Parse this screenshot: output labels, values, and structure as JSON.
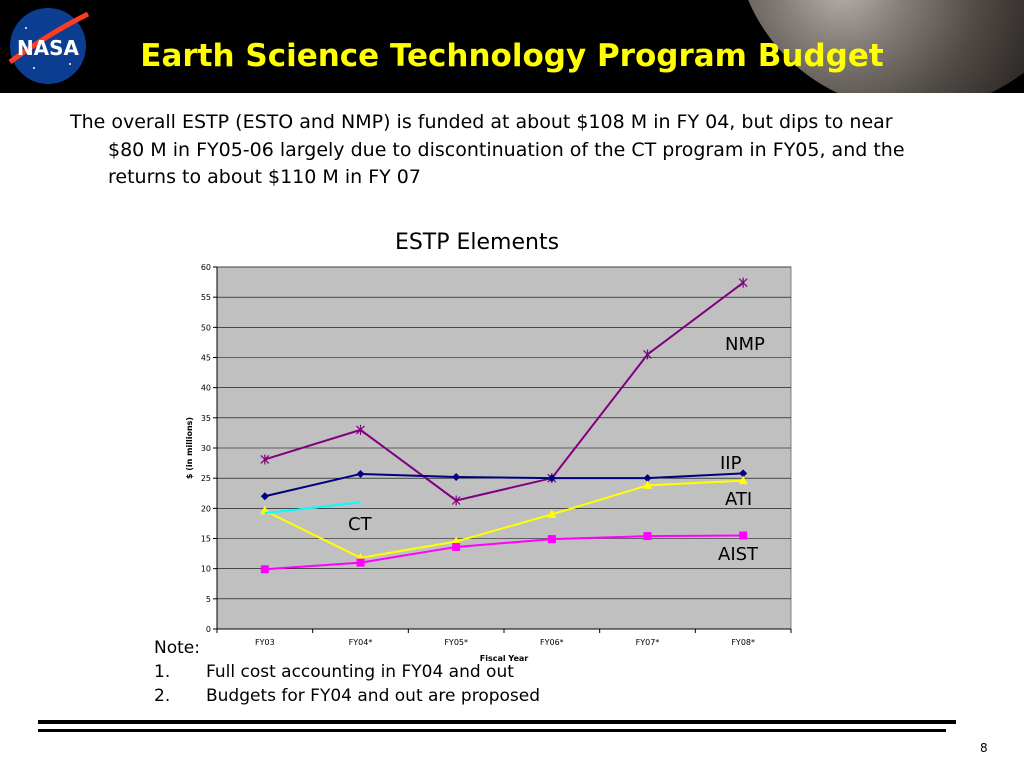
{
  "slide": {
    "title": "Earth Science Technology Program Budget",
    "intro": "The overall ESTP (ESTO and NMP) is funded at about $108 M in FY 04, but dips to near $80 M in FY05-06 largely due to discontinuation of the CT program in FY05, and the returns to about $110 M in FY 07",
    "logo_text": "NASA",
    "note_heading": "Note:",
    "notes": [
      {
        "num": "1.",
        "text": "Full cost accounting in FY04 and out"
      },
      {
        "num": "2.",
        "text": "Budgets for FY04 and out are proposed"
      }
    ],
    "page_number": "8"
  },
  "colors": {
    "title": "#ffff00",
    "header_bg": "#000000",
    "plot_bg": "#c0c0c0"
  },
  "chart_data": {
    "type": "line",
    "title": "ESTP Elements",
    "xlabel": "Fiscal Year",
    "ylabel": "$ (in millions)",
    "categories": [
      "FY03",
      "FY04*",
      "FY05*",
      "FY06*",
      "FY07*",
      "FY08*"
    ],
    "ylim": [
      0,
      60
    ],
    "ytick_step": 5,
    "grid": true,
    "series": [
      {
        "name": "NMP",
        "color": "#800080",
        "marker": "star",
        "values": [
          28.1,
          33,
          21.3,
          25,
          45.5,
          57.4
        ]
      },
      {
        "name": "IIP",
        "color": "#000080",
        "marker": "diamond",
        "values": [
          22,
          25.7,
          25.2,
          25,
          25,
          25.8
        ]
      },
      {
        "name": "ATI",
        "color": "#ffff00",
        "marker": "triangle",
        "values": [
          19.6,
          11.8,
          14.5,
          19,
          23.8,
          24.6
        ]
      },
      {
        "name": "AIST",
        "color": "#ff00ff",
        "marker": "square",
        "values": [
          9.9,
          11,
          13.6,
          14.9,
          15.4,
          15.5
        ]
      },
      {
        "name": "CT",
        "color": "#00ffff",
        "marker": "none",
        "values": [
          19.2,
          21,
          null,
          null,
          null,
          null
        ]
      }
    ]
  }
}
